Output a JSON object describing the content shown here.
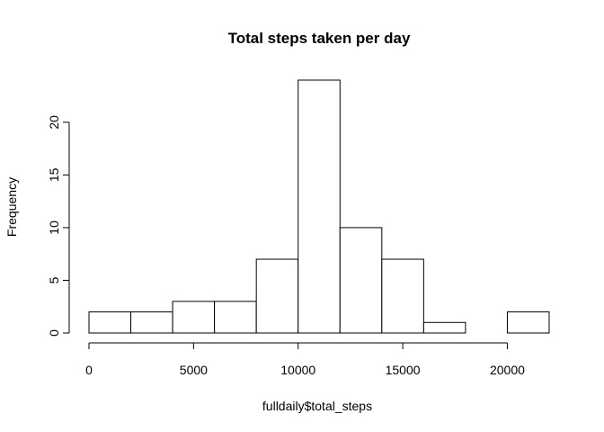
{
  "chart_data": {
    "type": "bar",
    "title": "Total steps taken per day",
    "xlabel": "fulldaily$total_steps",
    "ylabel": "Frequency",
    "bins": [
      {
        "start": 0,
        "end": 2000,
        "count": 2
      },
      {
        "start": 2000,
        "end": 4000,
        "count": 2
      },
      {
        "start": 4000,
        "end": 6000,
        "count": 3
      },
      {
        "start": 6000,
        "end": 8000,
        "count": 3
      },
      {
        "start": 8000,
        "end": 10000,
        "count": 7
      },
      {
        "start": 10000,
        "end": 12000,
        "count": 24
      },
      {
        "start": 12000,
        "end": 14000,
        "count": 10
      },
      {
        "start": 14000,
        "end": 16000,
        "count": 7
      },
      {
        "start": 16000,
        "end": 18000,
        "count": 1
      },
      {
        "start": 18000,
        "end": 20000,
        "count": 0
      },
      {
        "start": 20000,
        "end": 22000,
        "count": 2
      }
    ],
    "xlim": [
      0,
      22000
    ],
    "ylim": [
      0,
      24
    ],
    "x_ticks": [
      0,
      5000,
      10000,
      15000,
      20000
    ],
    "y_ticks": [
      0,
      5,
      10,
      15,
      20
    ],
    "grid": false,
    "legend": "none",
    "bar_fill": "#ffffff",
    "bar_stroke": "#000000"
  }
}
